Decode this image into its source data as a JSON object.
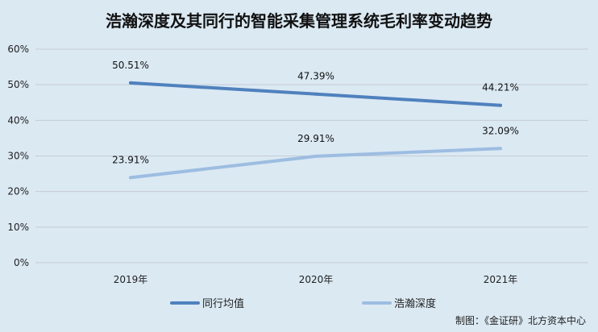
{
  "chart_data": {
    "type": "line",
    "title": "浩瀚深度及其同行的智能采集管理系统毛利率变动趋势",
    "categories": [
      "2019年",
      "2020年",
      "2021年"
    ],
    "x": [
      "2019年",
      "2020年",
      "2021年"
    ],
    "ylim": [
      0,
      60
    ],
    "yticks": [
      "0%",
      "10%",
      "20%",
      "30%",
      "40%",
      "50%",
      "60%"
    ],
    "ytick_values": [
      0,
      10,
      20,
      30,
      40,
      50,
      60
    ],
    "grid": true,
    "legend_position": "bottom",
    "series": [
      {
        "name": "同行均值",
        "values": [
          50.51,
          47.39,
          44.21
        ],
        "labels": [
          "50.51%",
          "47.39%",
          "44.21%"
        ],
        "color": "#4f81bd"
      },
      {
        "name": "浩瀚深度",
        "values": [
          23.91,
          29.91,
          32.09
        ],
        "labels": [
          "23.91%",
          "29.91%",
          "32.09%"
        ],
        "color": "#9dbde1"
      }
    ],
    "source": "制图：《金证研》北方资本中心"
  }
}
